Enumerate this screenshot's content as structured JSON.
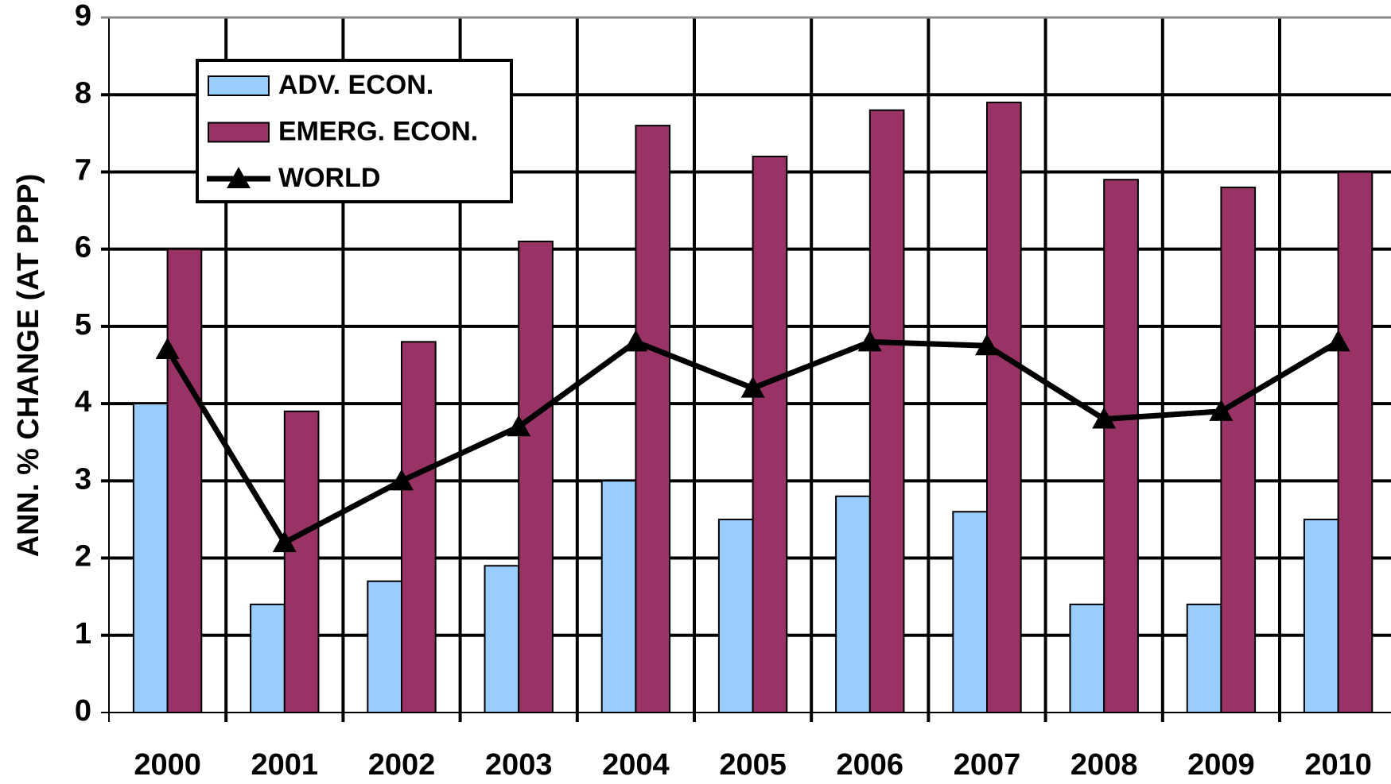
{
  "chart_data": {
    "type": "bar_line",
    "y_label": "ANN. % CHANGE (AT PPP)",
    "categories": [
      "2000",
      "2001",
      "2002",
      "2003",
      "2004",
      "2005",
      "2006",
      "2007",
      "2008",
      "2009",
      "2010"
    ],
    "series": [
      {
        "name": "ADV. ECON.",
        "type": "bar",
        "color": "#99ccff",
        "values": [
          4,
          1.4,
          1.7,
          1.9,
          3,
          2.5,
          2.8,
          2.6,
          1.4,
          1.4,
          2.5
        ]
      },
      {
        "name": "EMERG. ECON.",
        "type": "bar",
        "color": "#993366",
        "values": [
          6,
          3.9,
          4.8,
          6.1,
          7.6,
          7.2,
          7.8,
          7.9,
          6.9,
          6.8,
          7.0
        ]
      },
      {
        "name": "WORLD",
        "type": "line",
        "color": "#000000",
        "values": [
          4.7,
          2.2,
          3.0,
          3.7,
          4.8,
          4.2,
          4.8,
          4.75,
          3.8,
          3.9,
          4.8
        ]
      }
    ],
    "ylim": [
      0,
      9
    ],
    "yticks": [
      0,
      1,
      2,
      3,
      4,
      5,
      6,
      7,
      8,
      9
    ],
    "grid": true
  }
}
